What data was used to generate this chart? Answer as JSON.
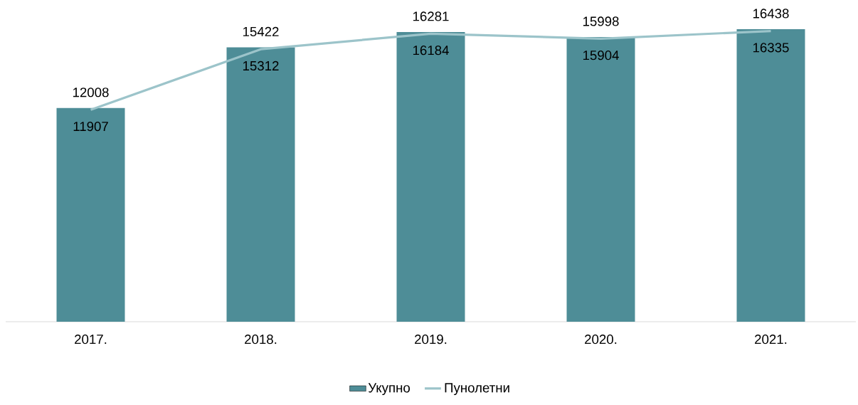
{
  "chart_data": {
    "type": "bar",
    "categories": [
      "2017.",
      "2018.",
      "2019.",
      "2020.",
      "2021."
    ],
    "series": [
      {
        "name": "Укупно",
        "color": "#4e8d97",
        "values": [
          12008,
          15422,
          16281,
          15998,
          16438
        ]
      },
      {
        "name": "Пунолетни",
        "type": "line",
        "color": "#9cc4ca",
        "values": [
          11907,
          15312,
          16184,
          15904,
          16335
        ]
      }
    ],
    "tick_labels": "x",
    "data_labels": true,
    "legend": "bottom",
    "grid": false,
    "marker": "none"
  }
}
